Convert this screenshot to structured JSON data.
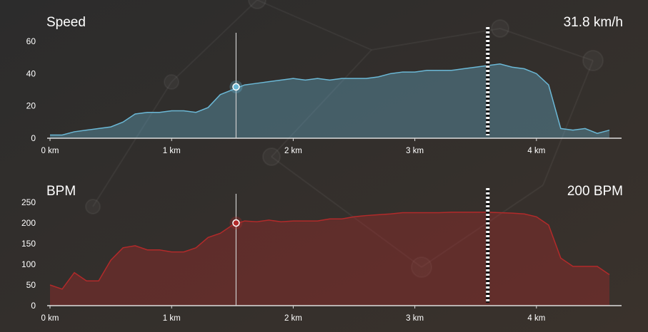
{
  "chart_data": [
    {
      "type": "area",
      "title": "Speed",
      "x": [
        0,
        0.1,
        0.2,
        0.3,
        0.4,
        0.5,
        0.6,
        0.7,
        0.8,
        0.9,
        1.0,
        1.1,
        1.2,
        1.3,
        1.4,
        1.5,
        1.6,
        1.7,
        1.8,
        1.9,
        2.0,
        2.1,
        2.2,
        2.3,
        2.4,
        2.5,
        2.6,
        2.7,
        2.8,
        2.9,
        3.0,
        3.1,
        3.2,
        3.3,
        3.4,
        3.5,
        3.6,
        3.7,
        3.8,
        3.9,
        4.0,
        4.1,
        4.2,
        4.3,
        4.4,
        4.5,
        4.6
      ],
      "series": [
        {
          "color": "#6bb8d6",
          "values": [
            2,
            2,
            4,
            5,
            6,
            7,
            10,
            15,
            16,
            16,
            17,
            17,
            16,
            19,
            27,
            30,
            33,
            34,
            35,
            36,
            37,
            36,
            37,
            36,
            37,
            37,
            37,
            38,
            40,
            41,
            41,
            42,
            42,
            42,
            43,
            44,
            45,
            46,
            44,
            43,
            40,
            33,
            6,
            5,
            6,
            3,
            5
          ]
        }
      ],
      "xlim": [
        0,
        4.7
      ],
      "ylim": [
        0,
        60
      ],
      "xticks": [
        {
          "value": 0,
          "label": "0 km"
        },
        {
          "value": 1,
          "label": "1 km"
        },
        {
          "value": 2,
          "label": "2 km"
        },
        {
          "value": 3,
          "label": "3 km"
        },
        {
          "value": 4,
          "label": "4 km"
        }
      ],
      "yticks": [
        0,
        20,
        40,
        60
      ],
      "cursor": {
        "x": 1.53,
        "y": 31.8,
        "label": "31.8 km/h"
      },
      "finish_x": 3.6
    },
    {
      "type": "area",
      "title": "BPM",
      "x": [
        0,
        0.1,
        0.2,
        0.3,
        0.4,
        0.5,
        0.6,
        0.7,
        0.8,
        0.9,
        1.0,
        1.1,
        1.2,
        1.3,
        1.4,
        1.5,
        1.6,
        1.7,
        1.8,
        1.9,
        2.0,
        2.1,
        2.2,
        2.3,
        2.4,
        2.5,
        2.6,
        2.7,
        2.8,
        2.9,
        3.0,
        3.1,
        3.2,
        3.3,
        3.4,
        3.5,
        3.6,
        3.7,
        3.8,
        3.9,
        4.0,
        4.1,
        4.2,
        4.3,
        4.4,
        4.5,
        4.6
      ],
      "series": [
        {
          "color": "#b22a2a",
          "values": [
            50,
            40,
            80,
            60,
            60,
            110,
            140,
            145,
            135,
            135,
            130,
            130,
            140,
            165,
            175,
            195,
            205,
            203,
            207,
            203,
            205,
            205,
            205,
            210,
            210,
            215,
            218,
            220,
            222,
            225,
            225,
            225,
            225,
            226,
            226,
            226,
            226,
            225,
            224,
            222,
            215,
            195,
            115,
            95,
            95,
            95,
            75
          ]
        }
      ],
      "xlim": [
        0,
        4.7
      ],
      "ylim": [
        0,
        250
      ],
      "xticks": [
        {
          "value": 0,
          "label": "0 km"
        },
        {
          "value": 1,
          "label": "1 km"
        },
        {
          "value": 2,
          "label": "2 km"
        },
        {
          "value": 3,
          "label": "3 km"
        },
        {
          "value": 4,
          "label": "4 km"
        }
      ],
      "yticks": [
        0,
        50,
        100,
        150,
        200,
        250
      ],
      "cursor": {
        "x": 1.53,
        "y": 200,
        "label": "200 BPM"
      },
      "finish_x": 3.6
    }
  ]
}
